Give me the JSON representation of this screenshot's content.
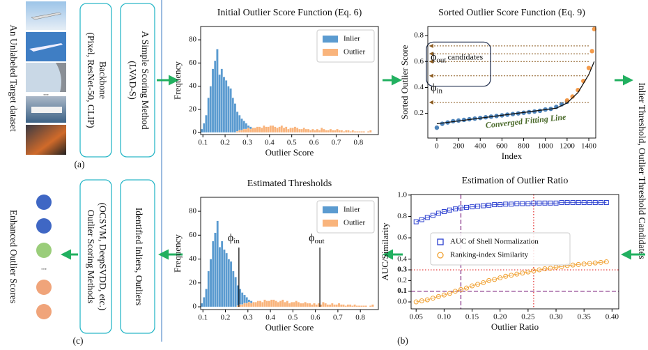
{
  "chart_data": [
    {
      "type": "histogram",
      "title": "Initial Outlier Score Function (Eq. 6)",
      "xlabel": "Outlier Score",
      "ylabel": "Frequency",
      "bins": [
        0.09,
        0.1,
        0.11,
        0.12,
        0.13,
        0.14,
        0.15,
        0.16,
        0.17,
        0.18,
        0.19,
        0.2,
        0.21,
        0.22,
        0.23,
        0.24,
        0.25,
        0.26,
        0.27,
        0.28,
        0.29,
        0.3,
        0.31,
        0.32,
        0.33,
        0.34,
        0.35,
        0.36,
        0.37,
        0.38,
        0.39,
        0.4,
        0.41,
        0.42,
        0.43,
        0.44,
        0.45,
        0.46,
        0.47,
        0.48,
        0.49,
        0.5,
        0.51,
        0.52,
        0.53,
        0.54,
        0.55,
        0.56,
        0.57,
        0.58,
        0.59,
        0.6,
        0.61,
        0.62,
        0.63,
        0.64,
        0.65,
        0.66,
        0.67,
        0.68,
        0.69,
        0.7,
        0.71,
        0.72,
        0.73,
        0.74,
        0.75,
        0.76,
        0.77,
        0.78,
        0.79,
        0.8,
        0.81,
        0.82,
        0.83,
        0.84,
        0.85,
        0.86,
        0.87
      ],
      "series": [
        {
          "name": "Inlier",
          "color": "#5b9bd0",
          "values": [
            3,
            8,
            15,
            30,
            40,
            55,
            62,
            72,
            50,
            55,
            48,
            45,
            40,
            38,
            30,
            25,
            18,
            15,
            12,
            10,
            8,
            6,
            5,
            4,
            3,
            3,
            2,
            2,
            1,
            1,
            1,
            0,
            0,
            0,
            0,
            0,
            0,
            0,
            0,
            0,
            0,
            0,
            0,
            0,
            0,
            0,
            0,
            0,
            0,
            0,
            0,
            0,
            0,
            0,
            0,
            0,
            0,
            0,
            0,
            0,
            0,
            0,
            0,
            0,
            0,
            0,
            0,
            0,
            0,
            0,
            0,
            0,
            0,
            0,
            0,
            0,
            0,
            0
          ]
        },
        {
          "name": "Outlier",
          "color": "#f9b47c",
          "values": [
            0,
            0,
            0,
            0,
            0,
            0,
            0,
            0,
            0,
            0,
            0,
            0,
            0,
            0,
            0,
            0,
            1,
            2,
            2,
            3,
            3,
            4,
            3,
            4,
            4,
            5,
            5,
            4,
            6,
            5,
            5,
            6,
            6,
            5,
            4,
            5,
            6,
            4,
            5,
            3,
            4,
            4,
            5,
            4,
            3,
            3,
            4,
            3,
            3,
            2,
            3,
            2,
            3,
            2,
            4,
            3,
            2,
            2,
            3,
            2,
            2,
            3,
            2,
            2,
            1,
            2,
            2,
            1,
            2,
            1,
            1,
            1,
            1,
            1,
            0,
            1,
            2,
            0
          ]
        }
      ],
      "xlim": [
        0.09,
        0.89
      ],
      "ylim": [
        -1.8,
        91.5
      ],
      "xticks": [
        0.1,
        0.2,
        0.3,
        0.4,
        0.5,
        0.6,
        0.7,
        0.8
      ],
      "yticks": [
        0,
        20,
        40,
        60,
        80
      ],
      "legend": "upper right"
    },
    {
      "type": "scatter",
      "title": "Sorted Outlier Score Function (Eq. 9)",
      "xlabel": "Index",
      "ylabel": "Sorted Outlier Score",
      "series": [
        {
          "color": "#2f6fae",
          "x": [
            0,
            50,
            100,
            150,
            200,
            250,
            300,
            350,
            400,
            450,
            500,
            550,
            600,
            650,
            700,
            750,
            800,
            850,
            900,
            950,
            1000,
            1050,
            1100,
            1150,
            1200
          ],
          "values": [
            0.09,
            0.12,
            0.13,
            0.14,
            0.145,
            0.15,
            0.155,
            0.16,
            0.165,
            0.17,
            0.175,
            0.18,
            0.185,
            0.19,
            0.195,
            0.2,
            0.205,
            0.21,
            0.215,
            0.22,
            0.23,
            0.235,
            0.25,
            0.27,
            0.29
          ]
        },
        {
          "color": "#f28a2c",
          "x": [
            1200,
            1250,
            1300,
            1350,
            1400,
            1430,
            1450
          ],
          "values": [
            0.3,
            0.33,
            0.38,
            0.45,
            0.55,
            0.68,
            0.85
          ]
        }
      ],
      "fit_line": {
        "label": "Converged Fitting Line",
        "color": "#111111",
        "x": [
          0,
          1100,
          1200,
          1300,
          1400,
          1450
        ],
        "values": [
          0.12,
          0.24,
          0.28,
          0.36,
          0.5,
          0.6
        ]
      },
      "candidate_levels": [
        0.72,
        0.66,
        0.6,
        0.49,
        0.285
      ],
      "candidate_color": "#8b5a1e",
      "annotations": [
        {
          "text": "ϕ",
          "sub": "out",
          "note": "candidates"
        },
        {
          "text": "ϕ",
          "sub": "in"
        }
      ],
      "xlim": [
        -83,
        1464
      ],
      "ylim": [
        0.01,
        0.87
      ],
      "xticks": [
        0,
        200,
        400,
        600,
        800,
        1000,
        1200,
        1400
      ],
      "yticks": [
        0.2,
        0.4,
        0.6,
        0.8
      ]
    },
    {
      "type": "histogram",
      "title": "Estimated Thresholds",
      "xlabel": "Outlier Score",
      "ylabel": "Frequency",
      "bins": [
        0.09,
        0.1,
        0.11,
        0.12,
        0.13,
        0.14,
        0.15,
        0.16,
        0.17,
        0.18,
        0.19,
        0.2,
        0.21,
        0.22,
        0.23,
        0.24,
        0.25,
        0.26,
        0.27,
        0.28,
        0.29,
        0.3,
        0.31,
        0.32,
        0.33,
        0.34,
        0.35,
        0.36,
        0.37,
        0.38,
        0.39,
        0.4,
        0.41,
        0.42,
        0.43,
        0.44,
        0.45,
        0.46,
        0.47,
        0.48,
        0.49,
        0.5,
        0.51,
        0.52,
        0.53,
        0.54,
        0.55,
        0.56,
        0.57,
        0.58,
        0.59,
        0.6,
        0.61,
        0.62,
        0.63,
        0.64,
        0.65,
        0.66,
        0.67,
        0.68,
        0.69,
        0.7,
        0.71,
        0.72,
        0.73,
        0.74,
        0.75,
        0.76,
        0.77,
        0.78,
        0.79,
        0.8,
        0.81,
        0.82,
        0.83,
        0.84,
        0.85,
        0.86,
        0.87
      ],
      "series": [
        {
          "name": "Inlier",
          "color": "#5b9bd0",
          "values": [
            3,
            8,
            15,
            30,
            40,
            55,
            62,
            72,
            50,
            55,
            48,
            45,
            40,
            38,
            30,
            25,
            18,
            15,
            12,
            10,
            8,
            6,
            5,
            4,
            3,
            3,
            2,
            2,
            1,
            1,
            1,
            0,
            0,
            0,
            0,
            0,
            0,
            0,
            0,
            0,
            0,
            0,
            0,
            0,
            0,
            0,
            0,
            0,
            0,
            0,
            0,
            0,
            0,
            0,
            0,
            0,
            0,
            0,
            0,
            0,
            0,
            0,
            0,
            0,
            0,
            0,
            0,
            0,
            0,
            0,
            0,
            0,
            0,
            0,
            0,
            0,
            0,
            0
          ]
        },
        {
          "name": "Outlier",
          "color": "#f9b47c",
          "values": [
            0,
            0,
            0,
            0,
            0,
            0,
            0,
            0,
            0,
            0,
            0,
            0,
            0,
            0,
            0,
            0,
            1,
            2,
            2,
            3,
            3,
            4,
            3,
            4,
            4,
            5,
            5,
            4,
            6,
            5,
            5,
            6,
            6,
            5,
            4,
            5,
            6,
            4,
            5,
            3,
            4,
            4,
            5,
            4,
            3,
            3,
            4,
            3,
            3,
            2,
            3,
            2,
            3,
            2,
            4,
            3,
            2,
            2,
            3,
            2,
            2,
            3,
            2,
            2,
            1,
            2,
            2,
            1,
            2,
            1,
            1,
            1,
            1,
            1,
            0,
            1,
            2,
            0
          ]
        }
      ],
      "thresholds": [
        {
          "value": 0.26,
          "text": "ϕ",
          "sub": "in"
        },
        {
          "value": 0.62,
          "text": "ϕ",
          "sub": "out"
        }
      ],
      "xlim": [
        0.09,
        0.88
      ],
      "ylim": [
        -2.3,
        91.7
      ],
      "xticks": [
        0.1,
        0.2,
        0.3,
        0.4,
        0.5,
        0.6,
        0.7,
        0.8
      ],
      "yticks": [
        0,
        20,
        40,
        60,
        80
      ],
      "legend": "upper right"
    },
    {
      "type": "line",
      "title": "Estimation of Outlier Ratio",
      "xlabel": "Outlier Ratio",
      "ylabel": "AUC/Similarity",
      "x": [
        0.05,
        0.06,
        0.07,
        0.08,
        0.09,
        0.1,
        0.11,
        0.12,
        0.13,
        0.14,
        0.15,
        0.16,
        0.17,
        0.18,
        0.19,
        0.2,
        0.21,
        0.22,
        0.23,
        0.24,
        0.25,
        0.26,
        0.27,
        0.28,
        0.29,
        0.3,
        0.31,
        0.32,
        0.33,
        0.34,
        0.35,
        0.36,
        0.37,
        0.38,
        0.39
      ],
      "series": [
        {
          "name": "AUC of Shell Normalization",
          "color": "#2b3fcf",
          "marker": "square",
          "values": [
            0.75,
            0.77,
            0.79,
            0.81,
            0.83,
            0.845,
            0.86,
            0.87,
            0.88,
            0.885,
            0.89,
            0.895,
            0.9,
            0.905,
            0.91,
            0.91,
            0.915,
            0.915,
            0.92,
            0.92,
            0.92,
            0.925,
            0.925,
            0.925,
            0.925,
            0.925,
            0.93,
            0.93,
            0.93,
            0.93,
            0.93,
            0.93,
            0.93,
            0.93,
            0.93
          ]
        },
        {
          "name": "Ranking-index Similarity",
          "color": "#f0a030",
          "marker": "circle",
          "values": [
            0.0,
            0.01,
            0.02,
            0.035,
            0.05,
            0.065,
            0.08,
            0.1,
            0.115,
            0.13,
            0.15,
            0.165,
            0.18,
            0.2,
            0.21,
            0.225,
            0.24,
            0.25,
            0.26,
            0.27,
            0.28,
            0.29,
            0.3,
            0.31,
            0.315,
            0.325,
            0.33,
            0.34,
            0.345,
            0.35,
            0.355,
            0.36,
            0.365,
            0.37,
            0.375
          ]
        }
      ],
      "hlines": [
        {
          "value": 0.1,
          "color": "#7b1f7b",
          "style": "dashed"
        },
        {
          "value": 0.3,
          "color": "#e02020",
          "style": "dotted"
        }
      ],
      "vlines": [
        {
          "value": 0.13,
          "color": "#7b1f7b",
          "style": "dashed"
        },
        {
          "value": 0.26,
          "color": "#e02020",
          "style": "dotted"
        }
      ],
      "xlim": [
        0.041,
        0.412
      ],
      "ylim": [
        -0.065,
        1.005
      ],
      "xticks": [
        0.05,
        {
          "value": 0.1,
          "label": "0.10"
        },
        0.15,
        {
          "value": 0.2,
          "label": "0.20"
        },
        0.25,
        {
          "value": 0.3,
          "label": "0.30"
        },
        0.35,
        {
          "value": 0.4,
          "label": "0.40"
        }
      ],
      "yticks": [
        {
          "value": 0,
          "label": "0.0"
        },
        0.1,
        0.2,
        0.3,
        0.4,
        0.6,
        0.8,
        {
          "value": 1,
          "label": "1.0"
        }
      ],
      "legend": "center left"
    }
  ],
  "diagram": {
    "dataset_label": "An Unlabeled Target dataset",
    "panel_a": "(a)",
    "panel_b": "(b)",
    "panel_c": "(c)",
    "ellipsis_images": "...",
    "ellipsis_scores": "...",
    "boxes": [
      {
        "title": "Backbone",
        "detail": "(Pixel, ResNet-50, CLIP)"
      },
      {
        "title": "A Simple Scoring Method",
        "detail": "(LVAD-S)"
      },
      {
        "title": "Outlier Scoring Methods",
        "detail": "(OCSVM, DeepSVDD, etc.)"
      },
      {
        "title": "Identified Inliers, Outliers"
      }
    ],
    "threshold_label": "Inlier Threshold, Outlier Threshold Candidates",
    "result_label": "Enhanced Outlier Scores"
  }
}
